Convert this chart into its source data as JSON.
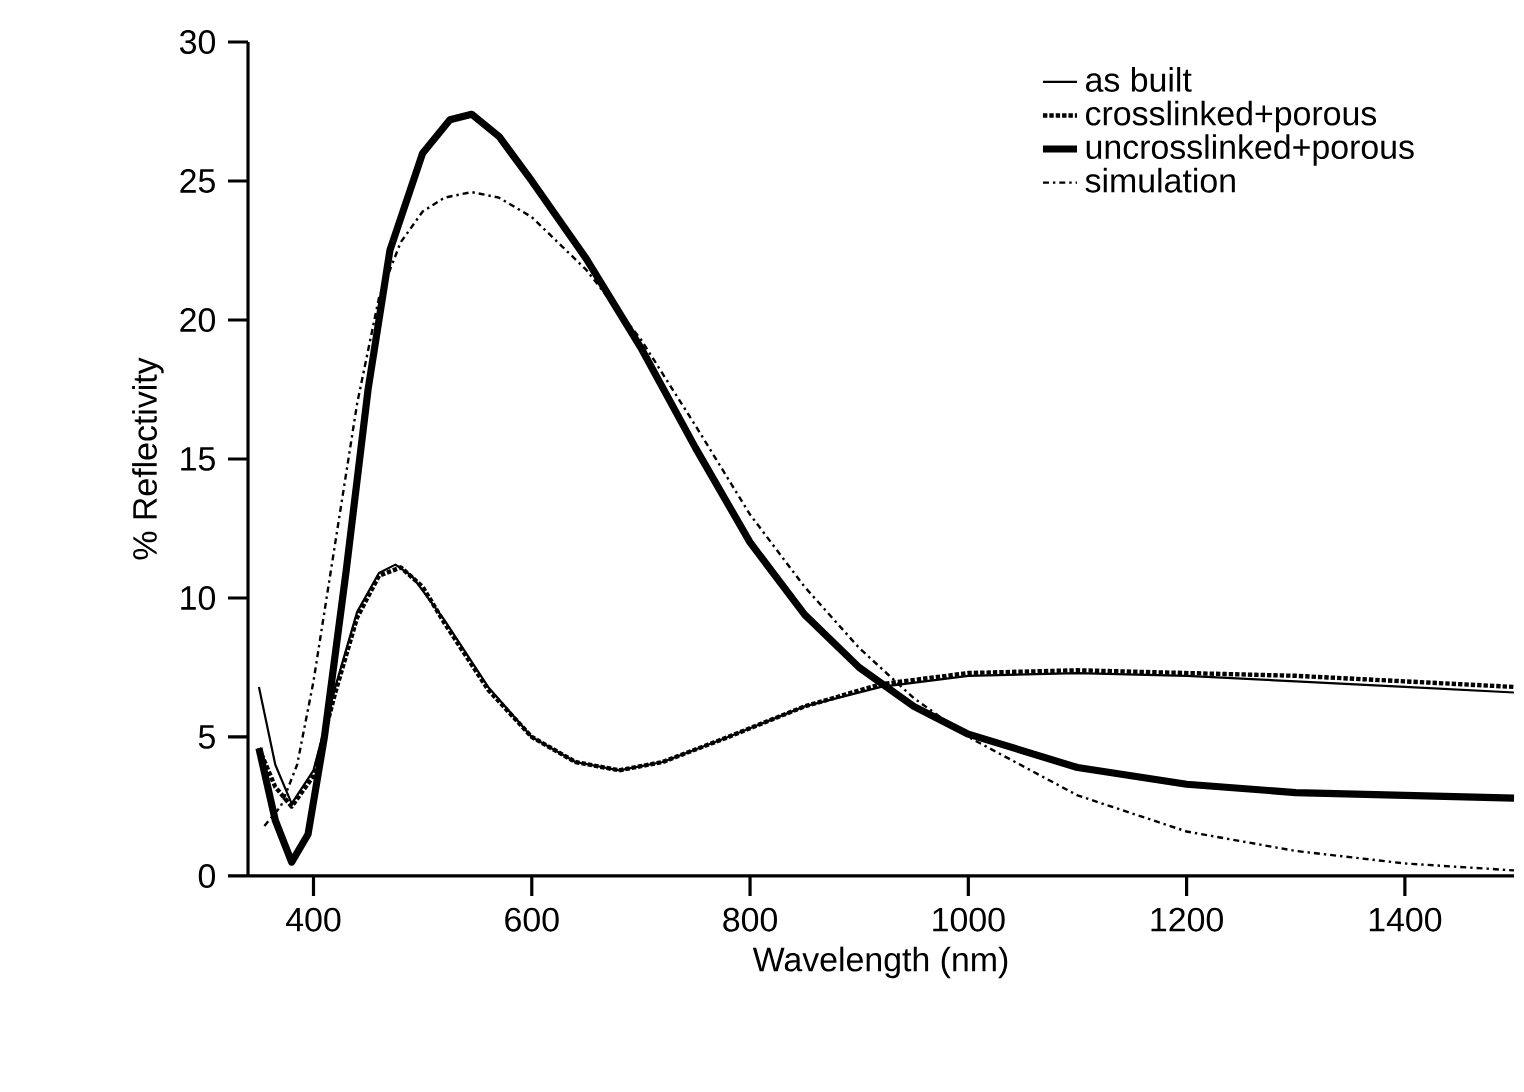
{
  "chart_data": {
    "type": "line",
    "xlabel": "Wavelength (nm)",
    "ylabel": "% Reflectivity",
    "xlim": [
      340,
      1500
    ],
    "ylim": [
      0,
      30
    ],
    "xticks": [
      400,
      600,
      800,
      1000,
      1200,
      1400
    ],
    "yticks": [
      0,
      5,
      10,
      15,
      20,
      25,
      30
    ],
    "grid": false,
    "legend": "top right",
    "marker": "none",
    "series": [
      {
        "name": "as built",
        "color": "#000000",
        "line_style": "solid",
        "x": [
          350,
          365,
          380,
          400,
          420,
          440,
          460,
          475,
          490,
          520,
          560,
          600,
          640,
          680,
          720,
          780,
          850,
          920,
          1000,
          1100,
          1200,
          1300,
          1400,
          1500
        ],
        "values": [
          6.8,
          4,
          2.6,
          3.8,
          6.8,
          9.5,
          10.9,
          11.2,
          10.8,
          9.2,
          6.8,
          5,
          4.1,
          3.8,
          4.1,
          5,
          6.1,
          6.8,
          7.2,
          7.3,
          7.2,
          7,
          6.8,
          6.6
        ]
      },
      {
        "name": "crosslinked+porous",
        "color": "#000000",
        "line_style": "dotted",
        "x": [
          350,
          365,
          380,
          400,
          420,
          440,
          460,
          480,
          500,
          520,
          560,
          600,
          640,
          680,
          720,
          780,
          850,
          920,
          1000,
          1100,
          1200,
          1300,
          1400,
          1500
        ],
        "values": [
          4.6,
          3.2,
          2.5,
          3.6,
          6.6,
          9.3,
          10.8,
          11.1,
          10.4,
          9.1,
          6.7,
          5,
          4.1,
          3.8,
          4.1,
          5,
          6.1,
          6.9,
          7.3,
          7.4,
          7.3,
          7.2,
          7,
          6.8
        ]
      },
      {
        "name": "uncrosslinked+porous",
        "color": "#000000",
        "line_style": "solid",
        "x": [
          350,
          365,
          380,
          395,
          410,
          430,
          450,
          470,
          500,
          525,
          545,
          570,
          600,
          650,
          700,
          750,
          800,
          850,
          900,
          950,
          1000,
          1100,
          1200,
          1300,
          1400,
          1500
        ],
        "values": [
          4.6,
          2,
          0.5,
          1.5,
          5,
          11,
          17.5,
          22.5,
          26,
          27.2,
          27.4,
          26.6,
          25,
          22.2,
          19,
          15.4,
          12,
          9.4,
          7.5,
          6.1,
          5.1,
          3.9,
          3.3,
          3,
          2.9,
          2.8
        ]
      },
      {
        "name": "simulation",
        "color": "#000000",
        "line_style": "dashdot",
        "x": [
          355,
          370,
          385,
          400,
          420,
          440,
          460,
          480,
          500,
          520,
          545,
          570,
          600,
          650,
          700,
          750,
          800,
          850,
          900,
          950,
          1000,
          1100,
          1200,
          1300,
          1400,
          1500
        ],
        "values": [
          1.8,
          2.5,
          4,
          7,
          12,
          17,
          20.8,
          22.8,
          23.9,
          24.4,
          24.6,
          24.4,
          23.7,
          21.8,
          19.3,
          16.2,
          13,
          10.4,
          8.2,
          6.4,
          5,
          2.9,
          1.6,
          0.9,
          0.45,
          0.2
        ]
      }
    ]
  }
}
